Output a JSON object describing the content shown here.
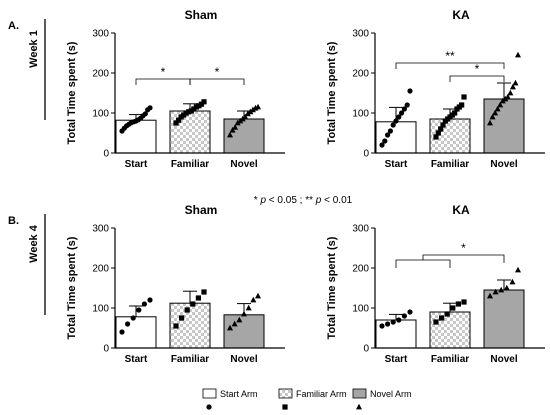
{
  "figure": {
    "significance_note_parts": [
      "* ",
      "p",
      " < 0.05 ; ** ",
      "p",
      " < 0.01"
    ],
    "legend": [
      {
        "label": "Start Arm",
        "fill": "white",
        "marker": "circle"
      },
      {
        "label": "Familiar Arm",
        "fill": "checker",
        "marker": "square"
      },
      {
        "label": "Novel Arm",
        "fill": "gray",
        "marker": "triangle"
      }
    ]
  },
  "colors": {
    "novel_bar": "#a6a6a6",
    "axis": "#000000",
    "checker": "#c8c8c8"
  },
  "chart_data": [
    {
      "type": "bar",
      "panel_label": "A.",
      "week_label": "Week 1",
      "title": "Sham",
      "ylabel": "Total Time spent (s)",
      "ylim": [
        0,
        300
      ],
      "yticks": [
        0,
        100,
        200,
        300
      ],
      "categories": [
        "Start",
        "Familiar",
        "Novel"
      ],
      "values": [
        82,
        105,
        85
      ],
      "errors": [
        14,
        18,
        20
      ],
      "points": [
        [
          55,
          62,
          68,
          72,
          76,
          78,
          80,
          83,
          87,
          93,
          98,
          108,
          113
        ],
        [
          75,
          82,
          90,
          95,
          100,
          103,
          105,
          110,
          115,
          118,
          122,
          128
        ],
        [
          45,
          57,
          64,
          75,
          80,
          85,
          90,
          98,
          103,
          108,
          112,
          115
        ]
      ],
      "significance": [
        {
          "from": 0,
          "to": 1,
          "label": "*"
        },
        {
          "from": 1,
          "to": 2,
          "label": "*"
        }
      ]
    },
    {
      "type": "bar",
      "panel_label": "",
      "week_label": "",
      "title": "KA",
      "ylabel": "Total Time spent (s)",
      "ylim": [
        0,
        300
      ],
      "yticks": [
        0,
        100,
        200,
        300
      ],
      "categories": [
        "Start",
        "Familiar",
        "Novel"
      ],
      "values": [
        78,
        85,
        135
      ],
      "errors": [
        36,
        25,
        40
      ],
      "points": [
        [
          20,
          30,
          45,
          55,
          70,
          80,
          90,
          100,
          110,
          120,
          155
        ],
        [
          40,
          50,
          60,
          70,
          80,
          85,
          90,
          95,
          100,
          110,
          115,
          120,
          140
        ],
        [
          75,
          90,
          100,
          110,
          120,
          130,
          135,
          140,
          150,
          165,
          175,
          245
        ]
      ],
      "significance": [
        {
          "from": 1,
          "to": 2,
          "label": "*"
        },
        {
          "from": 0,
          "to": 2,
          "label": "**"
        }
      ]
    },
    {
      "type": "bar",
      "panel_label": "B.",
      "week_label": "Week 4",
      "title": "Sham",
      "ylabel": "Total Time spent (s)",
      "ylim": [
        0,
        300
      ],
      "yticks": [
        0,
        100,
        200,
        300
      ],
      "categories": [
        "Start",
        "Familiar",
        "Novel"
      ],
      "values": [
        78,
        112,
        83
      ],
      "errors": [
        27,
        30,
        28
      ],
      "points": [
        [
          40,
          60,
          75,
          95,
          110,
          120
        ],
        [
          55,
          75,
          95,
          110,
          125,
          140
        ],
        [
          50,
          60,
          70,
          85,
          100,
          120,
          130
        ]
      ],
      "significance": []
    },
    {
      "type": "bar",
      "panel_label": "",
      "week_label": "",
      "title": "KA",
      "ylabel": "Total Time spent (s)",
      "ylim": [
        0,
        300
      ],
      "yticks": [
        0,
        100,
        200,
        300
      ],
      "categories": [
        "Start",
        "Familiar",
        "Novel"
      ],
      "values": [
        70,
        90,
        145
      ],
      "errors": [
        14,
        22,
        25
      ],
      "points": [
        [
          55,
          60,
          65,
          70,
          80,
          90
        ],
        [
          65,
          75,
          85,
          100,
          110,
          115
        ],
        [
          130,
          140,
          145,
          150,
          165,
          195
        ]
      ],
      "significance": [
        {
          "group": [
            0,
            1
          ],
          "to": 2,
          "label": "*"
        }
      ]
    }
  ]
}
